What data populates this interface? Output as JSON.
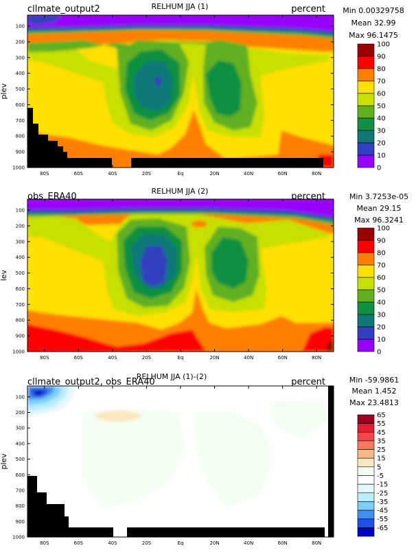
{
  "chart_data": [
    {
      "type": "heatmap",
      "title": "RELHUM JJA (1)",
      "left_label": "cllmate_output2",
      "right_label": "percent",
      "stats": {
        "min": "Min 0.00329758",
        "mean": "Mean 32.99",
        "max": "Max 96.1475"
      },
      "ylabel": "plev",
      "x_tick_labels": [
        "80S",
        "60S",
        "40S",
        "20S",
        "Eq",
        "20N",
        "40N",
        "60N",
        "80N"
      ],
      "x_ticks": [
        -80,
        -60,
        -40,
        -20,
        0,
        20,
        40,
        60,
        80
      ],
      "xlim": [
        -90,
        90
      ],
      "y_tick_labels": [
        "100",
        "200",
        "300",
        "400",
        "500",
        "600",
        "700",
        "800",
        "900",
        "1000"
      ],
      "y_ticks": [
        100,
        200,
        300,
        400,
        500,
        600,
        700,
        800,
        900,
        1000
      ],
      "ylim": [
        1000,
        30
      ],
      "colorbar_labels": [
        "100",
        "90",
        "80",
        "70",
        "60",
        "50",
        "40",
        "30",
        "20",
        "10",
        "0"
      ],
      "colorbar_colors": [
        "#990000",
        "#ff0000",
        "#ff8000",
        "#ffe000",
        "#c8e000",
        "#60b020",
        "#109040",
        "#107878",
        "#3040c0",
        "#9900ff"
      ]
    },
    {
      "type": "heatmap",
      "title": "RELHUM JJA (2)",
      "left_label": "obs_ERA40",
      "right_label": "percent",
      "stats": {
        "min": "Min 3.7253e-05",
        "mean": "Mean 29.15",
        "max": "Max 96.3241"
      },
      "ylabel": "lev",
      "x_tick_labels": [
        "80S",
        "60S",
        "40S",
        "20S",
        "Eq",
        "20N",
        "40N",
        "60N",
        "80N"
      ],
      "x_ticks": [
        -80,
        -60,
        -40,
        -20,
        0,
        20,
        40,
        60,
        80
      ],
      "xlim": [
        -90,
        90
      ],
      "y_tick_labels": [
        "100",
        "200",
        "300",
        "400",
        "500",
        "600",
        "700",
        "800",
        "900",
        "1000"
      ],
      "y_ticks": [
        100,
        200,
        300,
        400,
        500,
        600,
        700,
        800,
        900,
        1000
      ],
      "ylim": [
        1000,
        30
      ],
      "colorbar_labels": [
        "100",
        "90",
        "80",
        "70",
        "60",
        "50",
        "40",
        "30",
        "20",
        "10",
        "0"
      ],
      "colorbar_colors": [
        "#990000",
        "#ff0000",
        "#ff8000",
        "#ffe000",
        "#c8e000",
        "#60b020",
        "#109040",
        "#107878",
        "#3040c0",
        "#9900ff"
      ]
    },
    {
      "type": "heatmap",
      "title": "RELHUM JJA (1)-(2)",
      "left_label": "cllmate_output2, obs_ERA40",
      "right_label": "percent",
      "stats": {
        "min": "Min -59.9861",
        "mean": "Mean 1.452",
        "max": "Max 23.4813"
      },
      "ylabel": "plev",
      "x_tick_labels": [
        "80S",
        "60S",
        "40S",
        "20S",
        "Eq",
        "20N",
        "40N",
        "60N",
        "80N"
      ],
      "x_ticks": [
        -80,
        -60,
        -40,
        -20,
        0,
        20,
        40,
        60,
        80
      ],
      "xlim": [
        -90,
        90
      ],
      "y_tick_labels": [
        "100",
        "200",
        "300",
        "400",
        "500",
        "600",
        "700",
        "800",
        "900",
        "1000"
      ],
      "y_ticks": [
        100,
        200,
        300,
        400,
        500,
        600,
        700,
        800,
        900,
        1000
      ],
      "ylim": [
        1000,
        30
      ],
      "colorbar_labels": [
        "65",
        "55",
        "45",
        "35",
        "25",
        "15",
        "5",
        "-5",
        "-15",
        "-25",
        "-35",
        "-45",
        "-55",
        "-65"
      ],
      "colorbar_colors": [
        "#a00020",
        "#e02030",
        "#f04848",
        "#f87860",
        "#f8b888",
        "#fce8c0",
        "#f0fff0",
        "#ffffff",
        "#e6f8ff",
        "#b8ecff",
        "#80ccff",
        "#4090f0",
        "#2050e0",
        "#0000c0"
      ]
    }
  ]
}
